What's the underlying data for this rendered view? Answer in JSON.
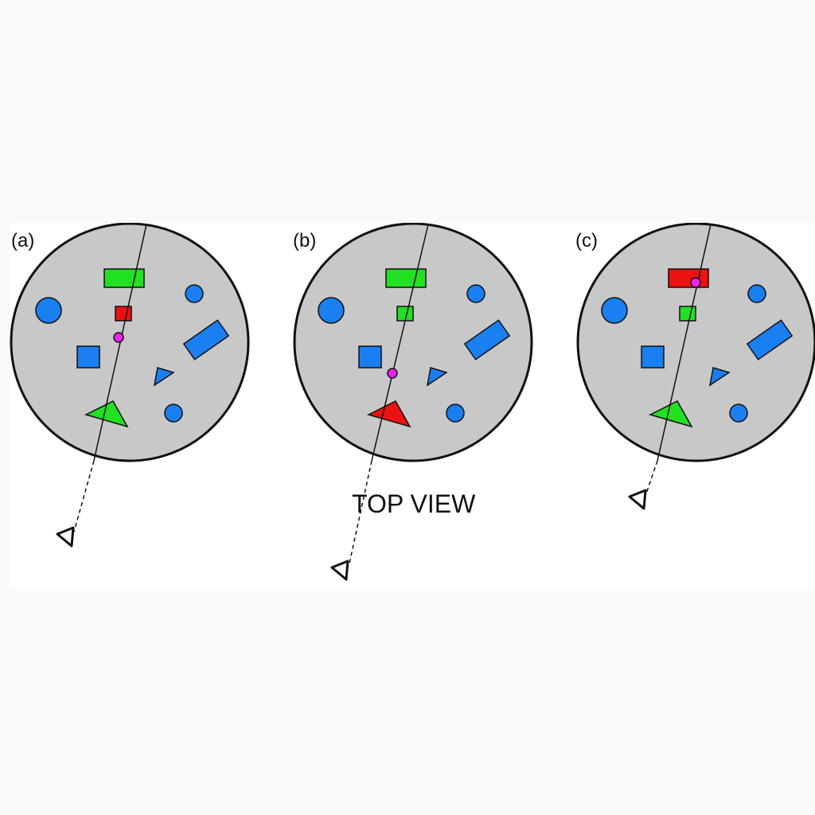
{
  "caption": "TOP VIEW",
  "colors": {
    "table": "#c8c8c8",
    "outline": "#111111",
    "blue": "#1a7ff0",
    "green": "#22e022",
    "red": "#ee1111",
    "fixation": "#ee22ee"
  },
  "panels": [
    {
      "label": "(a)",
      "highlighted_object": "small-square",
      "shapes": [
        {
          "id": "big-circle",
          "type": "circle",
          "color": "blue"
        },
        {
          "id": "wide-rect",
          "type": "rect",
          "color": "green"
        },
        {
          "id": "small-square",
          "type": "rect",
          "color": "red"
        },
        {
          "id": "top-right-circle",
          "type": "circle",
          "color": "blue"
        },
        {
          "id": "tilted-rect",
          "type": "rect",
          "color": "blue"
        },
        {
          "id": "left-square",
          "type": "rect",
          "color": "blue"
        },
        {
          "id": "small-triangle",
          "type": "triangle",
          "color": "blue"
        },
        {
          "id": "big-triangle",
          "type": "triangle",
          "color": "green"
        },
        {
          "id": "bottom-circle",
          "type": "circle",
          "color": "blue"
        }
      ]
    },
    {
      "label": "(b)",
      "highlighted_object": "big-triangle",
      "shapes": [
        {
          "id": "big-circle",
          "type": "circle",
          "color": "blue"
        },
        {
          "id": "wide-rect",
          "type": "rect",
          "color": "green"
        },
        {
          "id": "small-square",
          "type": "rect",
          "color": "green"
        },
        {
          "id": "top-right-circle",
          "type": "circle",
          "color": "blue"
        },
        {
          "id": "tilted-rect",
          "type": "rect",
          "color": "blue"
        },
        {
          "id": "left-square",
          "type": "rect",
          "color": "blue"
        },
        {
          "id": "small-triangle",
          "type": "triangle",
          "color": "blue"
        },
        {
          "id": "big-triangle",
          "type": "triangle",
          "color": "red"
        },
        {
          "id": "bottom-circle",
          "type": "circle",
          "color": "blue"
        }
      ]
    },
    {
      "label": "(c)",
      "highlighted_object": "wide-rect",
      "shapes": [
        {
          "id": "big-circle",
          "type": "circle",
          "color": "blue"
        },
        {
          "id": "wide-rect",
          "type": "rect",
          "color": "red"
        },
        {
          "id": "small-square",
          "type": "rect",
          "color": "green"
        },
        {
          "id": "top-right-circle",
          "type": "circle",
          "color": "blue"
        },
        {
          "id": "tilted-rect",
          "type": "rect",
          "color": "blue"
        },
        {
          "id": "left-square",
          "type": "rect",
          "color": "blue"
        },
        {
          "id": "small-triangle",
          "type": "triangle",
          "color": "blue"
        },
        {
          "id": "big-triangle",
          "type": "triangle",
          "color": "green"
        },
        {
          "id": "bottom-circle",
          "type": "circle",
          "color": "blue"
        }
      ]
    }
  ]
}
